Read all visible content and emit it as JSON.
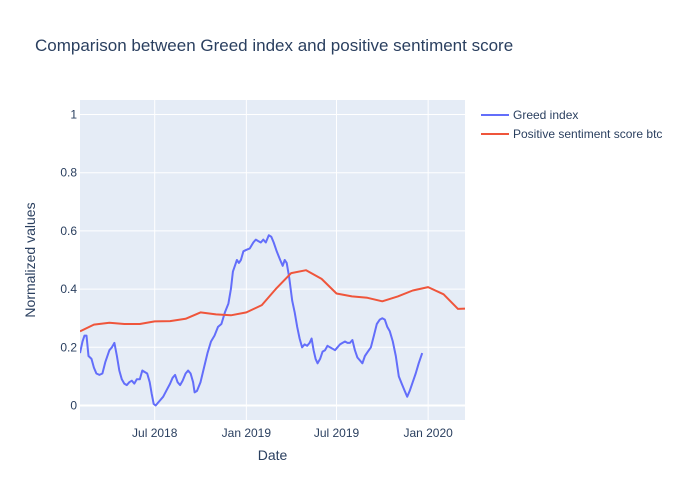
{
  "chart_data": {
    "type": "line",
    "title": "Comparison between Greed index and positive sentiment score",
    "xlabel": "Date",
    "ylabel": "Normalized values",
    "xlim": [
      "2018-02-01",
      "2020-03-15"
    ],
    "ylim": [
      -0.05,
      1.05
    ],
    "x_ticks": [
      {
        "date": "2018-07-01",
        "label": "Jul 2018"
      },
      {
        "date": "2019-01-01",
        "label": "Jan 2019"
      },
      {
        "date": "2019-07-01",
        "label": "Jul 2019"
      },
      {
        "date": "2020-01-01",
        "label": "Jan 2020"
      }
    ],
    "y_ticks": [
      {
        "value": 0,
        "label": "0"
      },
      {
        "value": 0.2,
        "label": "0.2"
      },
      {
        "value": 0.4,
        "label": "0.4"
      },
      {
        "value": 0.6,
        "label": "0.6"
      },
      {
        "value": 0.8,
        "label": "0.8"
      },
      {
        "value": 1,
        "label": "1"
      }
    ],
    "grid": true,
    "legend_position": "top-right outside",
    "colors": {
      "plot_bg": "#e5ecf6",
      "grid": "#ffffff",
      "text": "#2a3f5f"
    },
    "series": [
      {
        "name": "Greed index",
        "color": "#636efa",
        "points": [
          [
            "2018-02-01",
            0.18
          ],
          [
            "2018-02-06",
            0.22
          ],
          [
            "2018-02-10",
            0.24
          ],
          [
            "2018-02-14",
            0.24
          ],
          [
            "2018-02-18",
            0.17
          ],
          [
            "2018-02-24",
            0.16
          ],
          [
            "2018-03-01",
            0.13
          ],
          [
            "2018-03-06",
            0.11
          ],
          [
            "2018-03-12",
            0.105
          ],
          [
            "2018-03-18",
            0.11
          ],
          [
            "2018-03-24",
            0.15
          ],
          [
            "2018-04-01",
            0.19
          ],
          [
            "2018-04-06",
            0.2
          ],
          [
            "2018-04-11",
            0.215
          ],
          [
            "2018-04-16",
            0.17
          ],
          [
            "2018-04-21",
            0.12
          ],
          [
            "2018-04-26",
            0.09
          ],
          [
            "2018-05-01",
            0.075
          ],
          [
            "2018-05-06",
            0.07
          ],
          [
            "2018-05-11",
            0.08
          ],
          [
            "2018-05-16",
            0.085
          ],
          [
            "2018-05-21",
            0.075
          ],
          [
            "2018-05-26",
            0.09
          ],
          [
            "2018-06-01",
            0.09
          ],
          [
            "2018-06-06",
            0.12
          ],
          [
            "2018-06-11",
            0.115
          ],
          [
            "2018-06-16",
            0.11
          ],
          [
            "2018-06-21",
            0.08
          ],
          [
            "2018-06-25",
            0.04
          ],
          [
            "2018-06-29",
            0.005
          ],
          [
            "2018-07-03",
            0.0
          ],
          [
            "2018-07-08",
            0.01
          ],
          [
            "2018-07-13",
            0.02
          ],
          [
            "2018-07-18",
            0.03
          ],
          [
            "2018-07-24",
            0.05
          ],
          [
            "2018-08-01",
            0.075
          ],
          [
            "2018-08-06",
            0.095
          ],
          [
            "2018-08-11",
            0.105
          ],
          [
            "2018-08-16",
            0.08
          ],
          [
            "2018-08-21",
            0.07
          ],
          [
            "2018-08-26",
            0.085
          ],
          [
            "2018-09-01",
            0.11
          ],
          [
            "2018-09-06",
            0.12
          ],
          [
            "2018-09-11",
            0.11
          ],
          [
            "2018-09-16",
            0.08
          ],
          [
            "2018-09-19",
            0.045
          ],
          [
            "2018-09-24",
            0.05
          ],
          [
            "2018-10-01",
            0.08
          ],
          [
            "2018-10-08",
            0.13
          ],
          [
            "2018-10-15",
            0.18
          ],
          [
            "2018-10-22",
            0.22
          ],
          [
            "2018-10-29",
            0.24
          ],
          [
            "2018-11-05",
            0.27
          ],
          [
            "2018-11-12",
            0.28
          ],
          [
            "2018-11-19",
            0.32
          ],
          [
            "2018-11-26",
            0.35
          ],
          [
            "2018-12-01",
            0.4
          ],
          [
            "2018-12-05",
            0.46
          ],
          [
            "2018-12-09",
            0.48
          ],
          [
            "2018-12-13",
            0.5
          ],
          [
            "2018-12-17",
            0.49
          ],
          [
            "2018-12-21",
            0.5
          ],
          [
            "2018-12-26",
            0.53
          ],
          [
            "2019-01-01",
            0.535
          ],
          [
            "2019-01-08",
            0.54
          ],
          [
            "2019-01-15",
            0.56
          ],
          [
            "2019-01-20",
            0.57
          ],
          [
            "2019-01-25",
            0.565
          ],
          [
            "2019-01-30",
            0.56
          ],
          [
            "2019-02-04",
            0.57
          ],
          [
            "2019-02-09",
            0.56
          ],
          [
            "2019-02-15",
            0.585
          ],
          [
            "2019-02-20",
            0.58
          ],
          [
            "2019-02-25",
            0.56
          ],
          [
            "2019-03-03",
            0.53
          ],
          [
            "2019-03-10",
            0.5
          ],
          [
            "2019-03-15",
            0.48
          ],
          [
            "2019-03-19",
            0.5
          ],
          [
            "2019-03-23",
            0.49
          ],
          [
            "2019-03-28",
            0.44
          ],
          [
            "2019-04-03",
            0.36
          ],
          [
            "2019-04-08",
            0.32
          ],
          [
            "2019-04-13",
            0.27
          ],
          [
            "2019-04-18",
            0.23
          ],
          [
            "2019-04-23",
            0.2
          ],
          [
            "2019-04-28",
            0.21
          ],
          [
            "2019-05-03",
            0.205
          ],
          [
            "2019-05-08",
            0.215
          ],
          [
            "2019-05-12",
            0.23
          ],
          [
            "2019-05-16",
            0.19
          ],
          [
            "2019-05-20",
            0.16
          ],
          [
            "2019-05-24",
            0.145
          ],
          [
            "2019-05-29",
            0.16
          ],
          [
            "2019-06-03",
            0.185
          ],
          [
            "2019-06-08",
            0.19
          ],
          [
            "2019-06-13",
            0.205
          ],
          [
            "2019-06-18",
            0.2
          ],
          [
            "2019-06-23",
            0.195
          ],
          [
            "2019-06-28",
            0.19
          ],
          [
            "2019-07-03",
            0.2
          ],
          [
            "2019-07-08",
            0.21
          ],
          [
            "2019-07-13",
            0.215
          ],
          [
            "2019-07-18",
            0.22
          ],
          [
            "2019-07-23",
            0.215
          ],
          [
            "2019-07-28",
            0.215
          ],
          [
            "2019-08-02",
            0.225
          ],
          [
            "2019-08-07",
            0.19
          ],
          [
            "2019-08-12",
            0.165
          ],
          [
            "2019-08-17",
            0.155
          ],
          [
            "2019-08-22",
            0.145
          ],
          [
            "2019-08-27",
            0.17
          ],
          [
            "2019-09-02",
            0.185
          ],
          [
            "2019-09-08",
            0.2
          ],
          [
            "2019-09-14",
            0.24
          ],
          [
            "2019-09-20",
            0.28
          ],
          [
            "2019-09-26",
            0.295
          ],
          [
            "2019-10-01",
            0.3
          ],
          [
            "2019-10-06",
            0.295
          ],
          [
            "2019-10-11",
            0.27
          ],
          [
            "2019-10-16",
            0.255
          ],
          [
            "2019-10-22",
            0.22
          ],
          [
            "2019-10-28",
            0.17
          ],
          [
            "2019-11-03",
            0.1
          ],
          [
            "2019-11-09",
            0.075
          ],
          [
            "2019-11-15",
            0.05
          ],
          [
            "2019-11-20",
            0.03
          ],
          [
            "2019-11-25",
            0.05
          ],
          [
            "2019-12-01",
            0.08
          ],
          [
            "2019-12-07",
            0.11
          ],
          [
            "2019-12-13",
            0.145
          ],
          [
            "2019-12-20",
            0.18
          ]
        ]
      },
      {
        "name": "Positive sentiment score btc",
        "color": "#ef553b",
        "points": [
          [
            "2018-02-01",
            0.255
          ],
          [
            "2018-03-01",
            0.278
          ],
          [
            "2018-04-01",
            0.284
          ],
          [
            "2018-05-01",
            0.28
          ],
          [
            "2018-06-01",
            0.28
          ],
          [
            "2018-07-01",
            0.289
          ],
          [
            "2018-08-01",
            0.29
          ],
          [
            "2018-09-01",
            0.298
          ],
          [
            "2018-10-01",
            0.32
          ],
          [
            "2018-11-01",
            0.313
          ],
          [
            "2018-12-01",
            0.31
          ],
          [
            "2019-01-01",
            0.32
          ],
          [
            "2019-02-01",
            0.345
          ],
          [
            "2019-03-01",
            0.4
          ],
          [
            "2019-04-01",
            0.455
          ],
          [
            "2019-05-01",
            0.465
          ],
          [
            "2019-06-01",
            0.435
          ],
          [
            "2019-07-01",
            0.385
          ],
          [
            "2019-08-01",
            0.375
          ],
          [
            "2019-09-01",
            0.37
          ],
          [
            "2019-10-01",
            0.358
          ],
          [
            "2019-11-01",
            0.375
          ],
          [
            "2019-12-01",
            0.395
          ],
          [
            "2020-01-01",
            0.407
          ],
          [
            "2020-02-01",
            0.382
          ],
          [
            "2020-03-01",
            0.332
          ],
          [
            "2020-03-15",
            0.333
          ]
        ]
      }
    ]
  }
}
